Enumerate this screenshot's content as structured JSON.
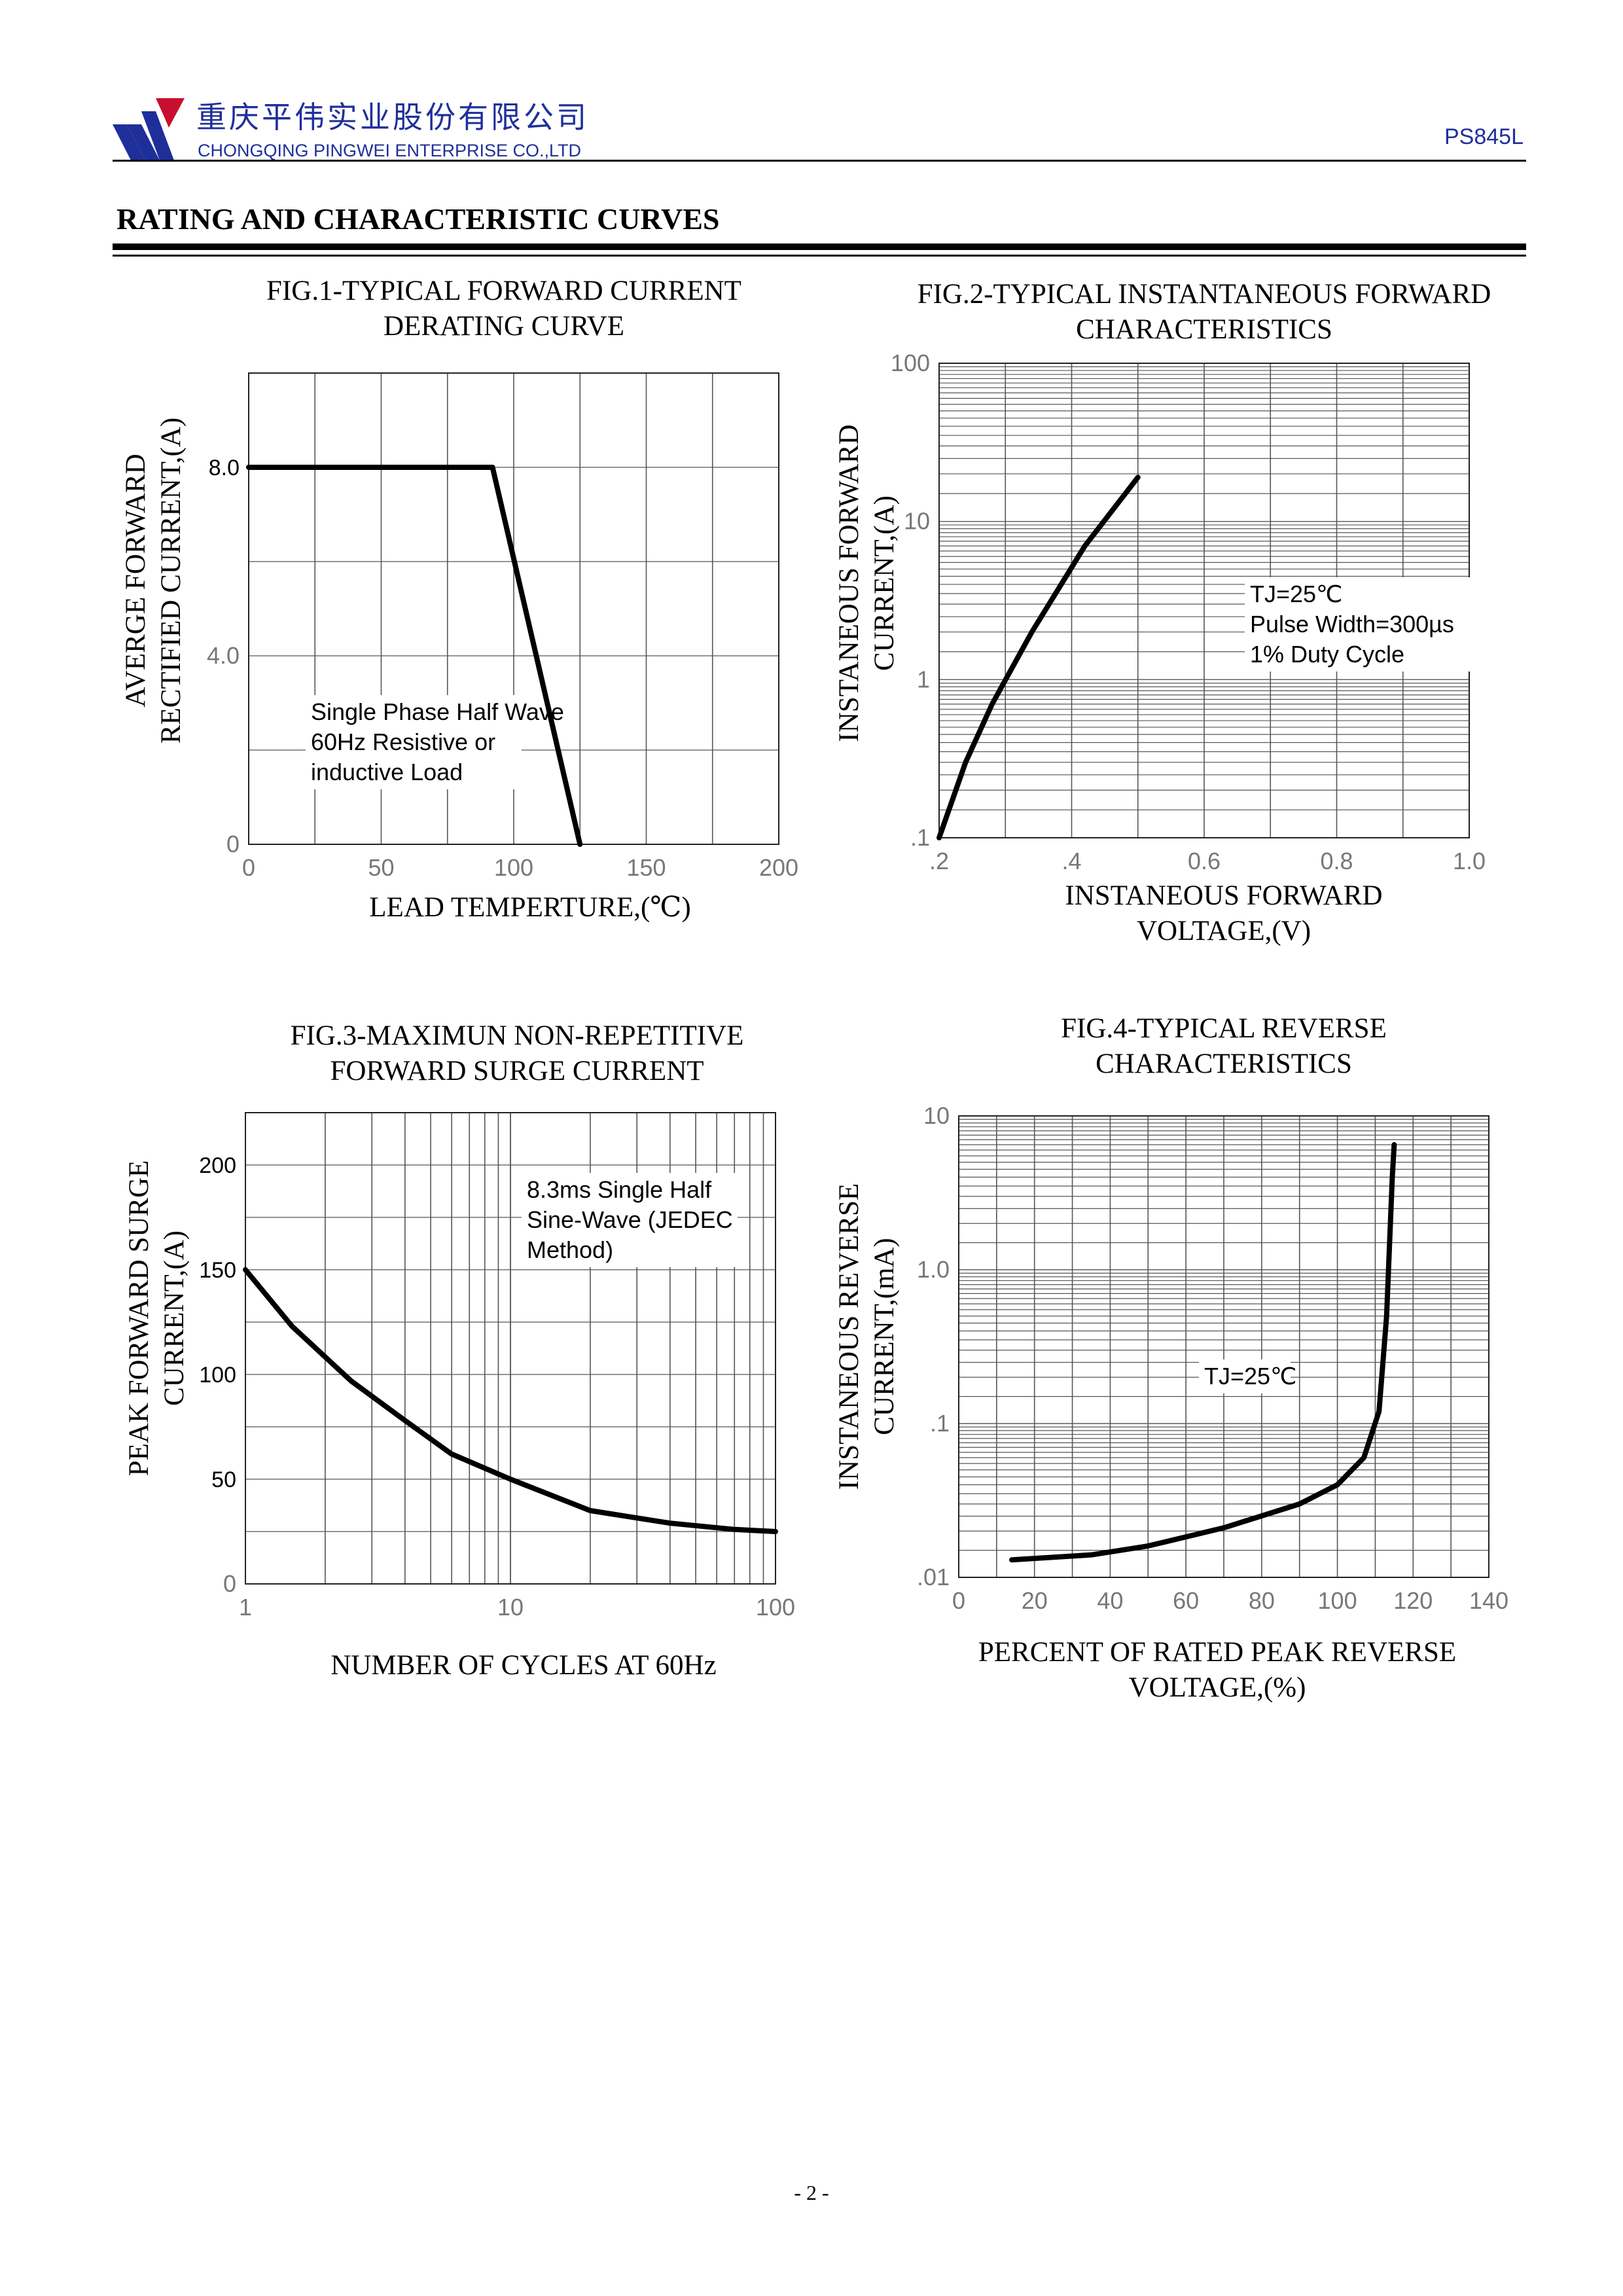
{
  "header": {
    "company_cn": "重庆平伟实业股份有限公司",
    "company_en": "CHONGQING PINGWEI ENTERPRISE CO.,LTD",
    "part_number": "PS845L",
    "brand_colors": {
      "blue": "#1f2f9a",
      "red": "#c8102e"
    }
  },
  "section_title": "RATING AND CHARACTERISTIC CURVES",
  "footer": {
    "page": "- 2 -"
  },
  "chart_data": [
    {
      "id": "fig1",
      "type": "line",
      "title": "FIG.1-TYPICAL FORWARD CURRENT\nDERATING CURVE",
      "xlabel": "LEAD TEMPERTURE,(℃)",
      "ylabel": "AVERGE FORWARD\nRECTIFIED CURRENT,(A)",
      "xlim": [
        0,
        200
      ],
      "ylim": [
        0,
        10
      ],
      "x_ticks": [
        0,
        50,
        100,
        150,
        200
      ],
      "x_tick_labels": [
        "0",
        "50",
        "100",
        "150",
        "200"
      ],
      "y_ticks": [
        0,
        4,
        8
      ],
      "y_tick_labels": [
        "0",
        "4.0",
        "8.0"
      ],
      "annotation": "Single Phase Half Wave\n60Hz Resistive or\ninductive Load",
      "series": [
        {
          "name": "derating",
          "x": [
            0,
            92,
            125
          ],
          "y": [
            8,
            8,
            0
          ]
        }
      ]
    },
    {
      "id": "fig2",
      "type": "line",
      "title": "FIG.2-TYPICAL INSTANTANEOUS FORWARD\nCHARACTERISTICS",
      "xlabel": "INSTANEOUS FORWARD\nVOLTAGE,(V)",
      "ylabel": "INSTANEOUS FORWARD\nCURRENT,(A)",
      "xlim": [
        0.2,
        1.0
      ],
      "ylim": [
        0.1,
        100
      ],
      "y_scale": "log",
      "x_ticks": [
        0.2,
        0.4,
        0.6,
        0.8,
        1.0
      ],
      "x_tick_labels": [
        ".2",
        ".4",
        "0.6",
        "0.8",
        "1.0"
      ],
      "y_ticks": [
        0.1,
        1,
        10,
        100
      ],
      "y_tick_labels": [
        ".1",
        "1",
        "10",
        "100"
      ],
      "annotation": "TJ=25℃\nPulse Width=300µs\n1% Duty Cycle",
      "series": [
        {
          "name": "forward",
          "x": [
            0.2,
            0.24,
            0.28,
            0.34,
            0.42,
            0.5
          ],
          "y": [
            0.1,
            0.3,
            0.7,
            2.0,
            7.0,
            19.0
          ]
        }
      ]
    },
    {
      "id": "fig3",
      "type": "line",
      "title": "FIG.3-MAXIMUN NON-REPETITIVE\nFORWARD SURGE CURRENT",
      "xlabel": "NUMBER OF CYCLES AT 60Hz",
      "ylabel": "PEAK FORWARD SURGE\nCURRENT,(A)",
      "xlim": [
        1,
        100
      ],
      "ylim": [
        0,
        225
      ],
      "x_scale": "log",
      "x_ticks": [
        1,
        10,
        100
      ],
      "x_tick_labels": [
        "1",
        "10",
        "100"
      ],
      "y_ticks": [
        0,
        50,
        100,
        150,
        200
      ],
      "y_tick_labels": [
        "0",
        "50",
        "100",
        "150",
        "200"
      ],
      "annotation": "8.3ms Single Half\nSine-Wave (JEDEC\nMethod)",
      "series": [
        {
          "name": "surge",
          "x": [
            1,
            1.5,
            2.5,
            4,
            6,
            10,
            20,
            40,
            70,
            100
          ],
          "y": [
            150,
            123,
            97,
            78,
            62,
            50,
            35,
            29,
            26,
            25
          ]
        }
      ]
    },
    {
      "id": "fig4",
      "type": "line",
      "title": "FIG.4-TYPICAL REVERSE\nCHARACTERISTICS",
      "xlabel": "PERCENT OF RATED PEAK REVERSE\nVOLTAGE,(%)",
      "ylabel": "INSTANEOUS REVERSE\nCURRENT,(mA)",
      "xlim": [
        0,
        140
      ],
      "ylim": [
        0.01,
        10
      ],
      "y_scale": "log",
      "x_ticks": [
        0,
        20,
        40,
        60,
        80,
        100,
        120,
        140
      ],
      "x_tick_labels": [
        "0",
        "20",
        "40",
        "60",
        "80",
        "100",
        "120",
        "140"
      ],
      "y_ticks": [
        0.01,
        0.1,
        1,
        10
      ],
      "y_tick_labels": [
        ".01",
        ".1",
        "1.0",
        "10"
      ],
      "annotation": "TJ=25℃",
      "series": [
        {
          "name": "reverse",
          "x": [
            14,
            35,
            50,
            70,
            90,
            100,
            107,
            111,
            113,
            114,
            114.5,
            115
          ],
          "y": [
            0.013,
            0.014,
            0.016,
            0.021,
            0.03,
            0.04,
            0.06,
            0.12,
            0.5,
            2.0,
            4.0,
            6.5
          ]
        }
      ]
    }
  ]
}
